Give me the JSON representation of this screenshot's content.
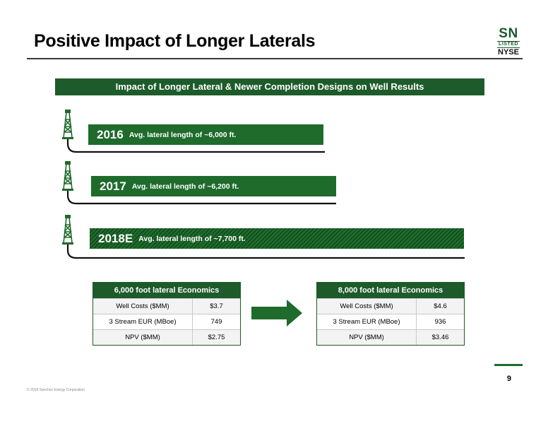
{
  "title": "Positive Impact of Longer Laterals",
  "logo": {
    "ticker": "SN",
    "listed": "LISTED",
    "exchange": "NYSE"
  },
  "banner": "Impact of Longer Lateral & Newer Completion Designs on Well Results",
  "laterals": [
    {
      "year": "2016",
      "text": "Avg. lateral length of ~6,000 ft."
    },
    {
      "year": "2017",
      "text": "Avg. lateral length of ~6,200 ft."
    },
    {
      "year": "2018E",
      "text": "Avg. lateral length of ~7,700 ft."
    }
  ],
  "economics": [
    {
      "title": "6,000 foot lateral Economics",
      "rows": [
        {
          "label": "Well Costs ($MM)",
          "value": "$3.7"
        },
        {
          "label": "3 Stream EUR (MBoe)",
          "value": "749"
        },
        {
          "label": "NPV ($MM)",
          "value": "$2.75"
        }
      ]
    },
    {
      "title": "8,000 foot lateral Economics",
      "rows": [
        {
          "label": "Well Costs ($MM)",
          "value": "$4.6"
        },
        {
          "label": "3 Stream EUR (MBoe)",
          "value": "936"
        },
        {
          "label": "NPV ($MM)",
          "value": "$3.46"
        }
      ]
    }
  ],
  "page_number": "9",
  "copyright": "© 2018 Sanchez Energy Corporation",
  "colors": {
    "brand_green": "#1e5b2a",
    "bar_green": "#1e6b2c"
  }
}
